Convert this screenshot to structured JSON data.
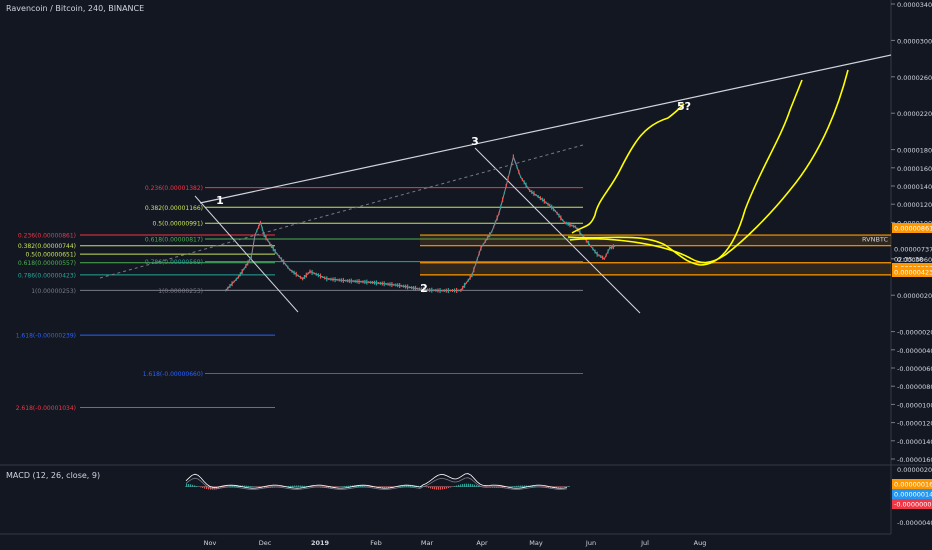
{
  "header": {
    "symbol_label": "Ravencoin / Bitcoin, 240, BINANCE"
  },
  "macd": {
    "title": "MACD (12, 26, close, 9)"
  },
  "chart_data": {
    "type": "line",
    "series": [
      {
        "name": "RVNBTC",
        "x": [
          "Oct 15",
          "Oct 22",
          "Oct 26",
          "Oct 29",
          "Nov 1",
          "Nov 4",
          "Nov 6",
          "Nov 12",
          "Nov 20",
          "Nov 27",
          "Dec 1",
          "Dec 10",
          "Dec 20",
          "Jan 5",
          "Jan 20",
          "Feb 5",
          "Feb 15",
          "Feb 25",
          "Mar 1",
          "Mar 6",
          "Mar 12",
          "Mar 16",
          "Mar 20",
          "Mar 24",
          "Mar 28",
          "Apr 3",
          "Apr 10",
          "Apr 16",
          "Apr 22",
          "Apr 28",
          "May 4",
          "May 10",
          "May 14",
          "May 17",
          "May 20"
        ],
        "values": [
          2.53e-06,
          4e-06,
          5.2e-06,
          6.2e-06,
          8.6e-06,
          1e-05,
          8.6e-06,
          6.8e-06,
          4.8e-06,
          3.8e-06,
          4.6e-06,
          3.8e-06,
          3.6e-06,
          3.4e-06,
          3.1e-06,
          2.6e-06,
          2.5e-06,
          2.53e-06,
          4.2e-06,
          7.2e-06,
          9e-06,
          1.1e-05,
          1.4e-05,
          1.72e-05,
          1.5e-05,
          1.35e-05,
          1.25e-05,
          1.15e-05,
          1e-05,
          9.5e-06,
          8e-06,
          6.5e-06,
          6e-06,
          7.2e-06,
          7.4e-06
        ]
      }
    ],
    "annotations": {
      "wave_labels": [
        "1",
        "2",
        "3",
        "5?"
      ],
      "fib_left": [
        {
          "ratio": "0.236",
          "label": "0.236(0.00000861)",
          "color": "#f23645"
        },
        {
          "ratio": "0.382",
          "label": "0.382(0.00000744)",
          "color": "#c8e35a"
        },
        {
          "ratio": "0.5",
          "label": "0.5(0.00000651)",
          "color": "#c8e35a"
        },
        {
          "ratio": "0.618",
          "label": "0.618(0.00000557)",
          "color": "#4caf50"
        },
        {
          "ratio": "0.786",
          "label": "0.786(0.00000423)",
          "color": "#26a69a"
        },
        {
          "ratio": "1",
          "label": "1(0.00000253)",
          "color": "#787b86"
        },
        {
          "ratio": "1.618",
          "label": "1.618(-0.00000239)",
          "color": "#2962ff"
        },
        {
          "ratio": "2.618",
          "label": "2.618(-0.00001034)",
          "color": "#f23645"
        }
      ],
      "fib_right": [
        {
          "ratio": "0.236",
          "label": "0.236(0.00001382)",
          "color": "#f23645"
        },
        {
          "ratio": "0.382",
          "label": "0.382(0.00001166)",
          "color": "#c8e35a"
        },
        {
          "ratio": "0.5",
          "label": "0.5(0.00000991)",
          "color": "#c8e35a"
        },
        {
          "ratio": "0.618",
          "label": "0.618(0.00000817)",
          "color": "#4caf50"
        },
        {
          "ratio": "0.786",
          "label": "0.786(0.00000569)",
          "color": "#26a69a"
        },
        {
          "ratio": "1",
          "label": "1(0.00000253)",
          "color": "#787b86"
        },
        {
          "ratio": "1.618",
          "label": "1.618(-0.00000660)",
          "color": "#2962ff"
        }
      ],
      "price_tags": [
        {
          "label": "0.00000861",
          "bg": "#ff9800",
          "fg": "#ffffff"
        },
        {
          "label": "RVNBTC",
          "bg": "#131722",
          "fg": "#d1d4dc"
        },
        {
          "label": "0.00000737",
          "bg": "#131722",
          "fg": "#d1d4dc"
        },
        {
          "label": "02:35:38",
          "bg": "#131722",
          "fg": "#d1d4dc"
        },
        {
          "label": "0.00000557",
          "bg": "#ff9800",
          "fg": "#ffffff"
        },
        {
          "label": "0.00000423",
          "bg": "#ff9800",
          "fg": "#ffffff"
        }
      ],
      "macd_tags": [
        {
          "label": "0.00000016",
          "bg": "#ff9800",
          "fg": "#ffffff"
        },
        {
          "label": "0.00000014",
          "bg": "#2196f3",
          "fg": "#ffffff"
        },
        {
          "label": "-0.00000002",
          "bg": "#f23645",
          "fg": "#ffffff"
        }
      ]
    },
    "y_ticks": [
      "0.00003400",
      "0.00003000",
      "0.00002600",
      "0.00002200",
      "0.00001800",
      "0.00001600",
      "0.00001400",
      "0.00001200",
      "0.00001000",
      "0.00000600",
      "0.00000200",
      "-0.00000200",
      "-0.00000400",
      "-0.00000600",
      "-0.00000800",
      "-0.00001000",
      "-0.00001200",
      "-0.00001400",
      "-0.00001600"
    ],
    "x_ticks": [
      "Nov",
      "Dec",
      "2019",
      "Feb",
      "Mar",
      "Apr",
      "May",
      "Jun",
      "Jul",
      "Aug"
    ],
    "macd_y_ticks": [
      "0.00000200",
      "-0.00000200",
      "-0.00000400"
    ],
    "ylim": [
      -1.7e-05,
      3.5e-05
    ],
    "grid": false,
    "colors": {
      "background": "#131722",
      "axis_text": "#d1d4dc",
      "up": "#26a69a",
      "down": "#ef5350",
      "trendline": "#ffffff",
      "projection": "#ffff00",
      "zone": "#ff9800"
    }
  }
}
